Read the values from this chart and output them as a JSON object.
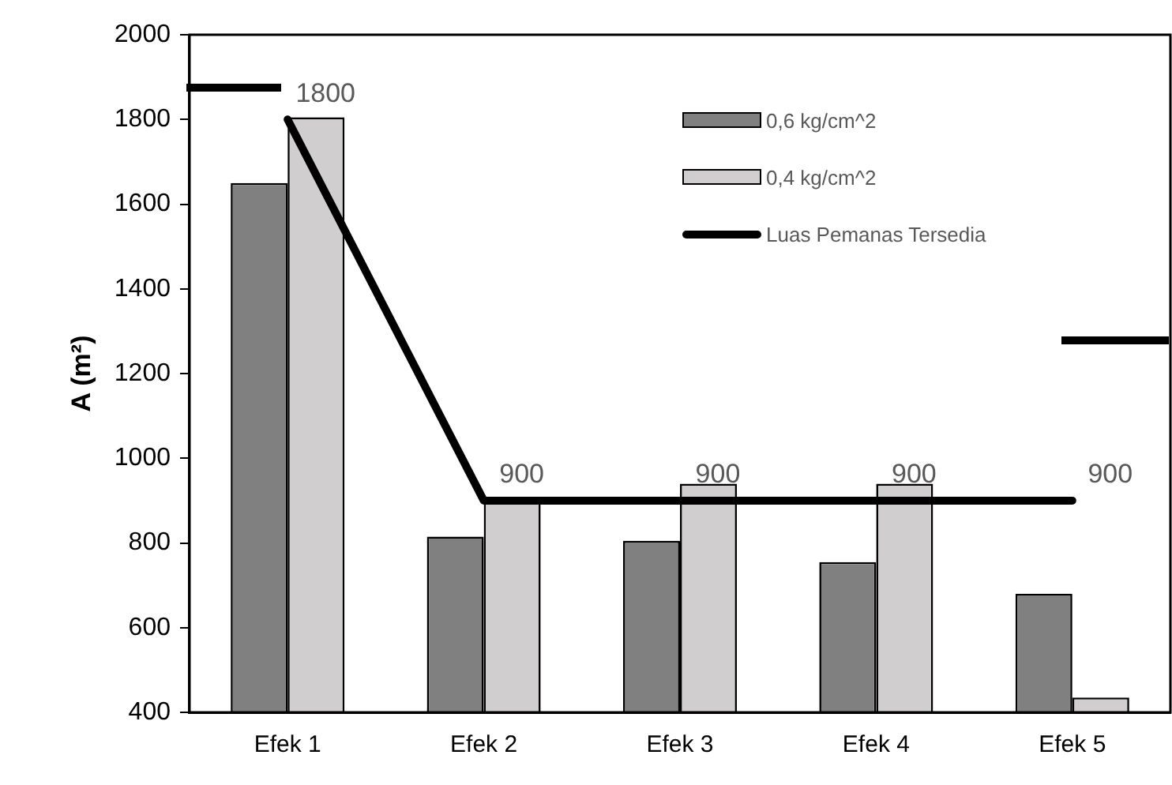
{
  "chart_data": {
    "type": "bar",
    "ylabel": "A (m²)",
    "categories": [
      "Efek 1",
      "Efek 2",
      "Efek 3",
      "Efek 4",
      "Efek 5"
    ],
    "series": [
      {
        "name": "0,6 kg/cm^2",
        "color": "#808080",
        "values": [
          1650,
          815,
          805,
          755,
          680
        ]
      },
      {
        "name": "0,4 kg/cm^2",
        "color": "#d0cece",
        "values": [
          1805,
          900,
          940,
          940,
          435
        ]
      },
      {
        "name": "Luas Pemanas Tersedia",
        "type": "line",
        "color": "#000000",
        "values": [
          1800,
          900,
          900,
          900,
          900
        ],
        "value_labels": [
          "1800",
          "900",
          "900",
          "900",
          "900"
        ]
      }
    ],
    "ylim": [
      400,
      2000
    ],
    "yticks": [
      400,
      600,
      800,
      1000,
      1200,
      1400,
      1600,
      1800,
      2000
    ],
    "grid": false,
    "legend": "top right",
    "marker": "none",
    "line_style": "solid"
  }
}
